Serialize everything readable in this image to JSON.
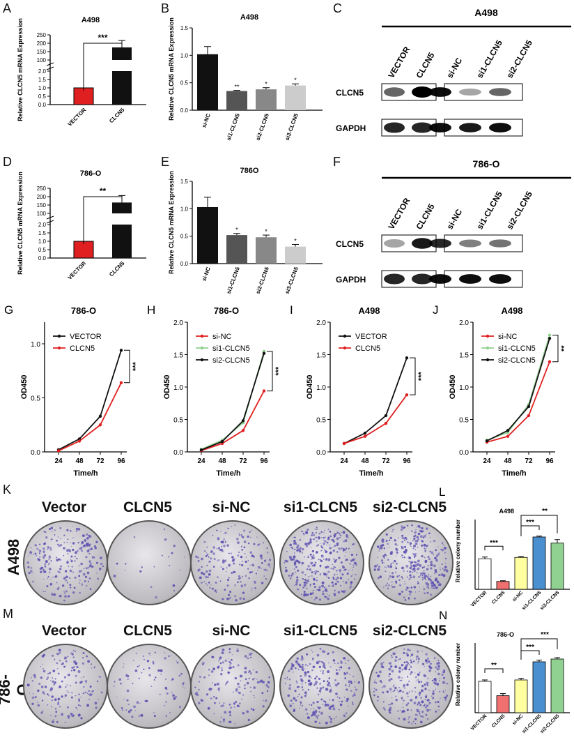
{
  "panels": {
    "A": {
      "letter": "A",
      "title": "A498",
      "ylabel": "Relative CLCN5 mRNA Expression",
      "categories": [
        "VECTOR",
        "CLCN5"
      ],
      "values": [
        1.0,
        175
      ],
      "colors": [
        "#e02020",
        "#111111"
      ],
      "sig": "***",
      "yticks_low": [
        "0.0",
        "0.5",
        "1.0",
        "1.5",
        "2.0"
      ],
      "yticks_high": [
        "100",
        "150",
        "200",
        "250"
      ]
    },
    "B": {
      "letter": "B",
      "title": "A498",
      "ylabel": "Relative CLCN5 mRNA Expression",
      "categories": [
        "si-NC",
        "si1-CLCN5",
        "si2-CLCN5",
        "si3-CLCN5"
      ],
      "values": [
        1.02,
        0.35,
        0.38,
        0.45
      ],
      "errors": [
        0.14,
        0.01,
        0.03,
        0.03
      ],
      "sig": [
        "",
        "**",
        "*",
        "*"
      ],
      "colors": [
        "#111111",
        "#555555",
        "#888888",
        "#cccccc"
      ],
      "yticks": [
        "0.0",
        "0.5",
        "1.0",
        "1.5"
      ]
    },
    "C": {
      "letter": "C",
      "cell": "A498",
      "lanes_left": [
        "VECTOR",
        "CLCN5"
      ],
      "lanes_right": [
        "si-NC",
        "si1-CLCN5",
        "si2-CLCN5"
      ],
      "rows": [
        "CLCN5",
        "GAPDH"
      ]
    },
    "D": {
      "letter": "D",
      "title": "786-O",
      "ylabel": "Relative CLCN5 mRNA Expression",
      "categories": [
        "VECTOR",
        "CLCN5"
      ],
      "values": [
        1.0,
        165
      ],
      "colors": [
        "#e02020",
        "#111111"
      ],
      "sig": "**",
      "yticks_low": [
        "0.0",
        "0.5",
        "1.0",
        "1.5",
        "2.0"
      ],
      "yticks_high": [
        "100",
        "150",
        "200",
        "250"
      ]
    },
    "E": {
      "letter": "E",
      "title": "786O",
      "ylabel": "Relative CLCN5 mRNA Expression",
      "categories": [
        "si-NC",
        "si1-CLCN5",
        "si2-CLCN5",
        "si3-CLCN5"
      ],
      "values": [
        1.03,
        0.52,
        0.48,
        0.31
      ],
      "errors": [
        0.18,
        0.03,
        0.04,
        0.04
      ],
      "sig": [
        "",
        "*",
        "*",
        "*"
      ],
      "colors": [
        "#111111",
        "#555555",
        "#888888",
        "#cccccc"
      ],
      "yticks": [
        "0.0",
        "0.5",
        "1.0",
        "1.5"
      ]
    },
    "F": {
      "letter": "F",
      "cell": "786-O",
      "lanes_left": [
        "VECTOR",
        "CLCN5"
      ],
      "lanes_right": [
        "si-NC",
        "si1-CLCN5",
        "si2-CLCN5"
      ],
      "rows": [
        "CLCN5",
        "GAPDH"
      ]
    },
    "K": {
      "letter": "K",
      "row_label": "A498",
      "dishes": [
        "Vector",
        "CLCN5",
        "si-NC",
        "si1-CLCN5",
        "si2-CLCN5"
      ],
      "density": [
        0.55,
        0.05,
        0.45,
        0.85,
        0.8
      ]
    },
    "M": {
      "letter": "M",
      "row_label": "786-O",
      "dishes": [
        "Vector",
        "CLCN5",
        "si-NC",
        "si1-CLCN5",
        "si2-CLCN5"
      ],
      "density": [
        0.4,
        0.2,
        0.35,
        0.6,
        0.65
      ]
    }
  },
  "chart_data": [
    {
      "type": "line",
      "panel": "G",
      "title": "786-O",
      "xlabel": "Time/h",
      "ylabel": "OD450",
      "x": [
        24,
        48,
        72,
        96
      ],
      "ylim": [
        0,
        1.2
      ],
      "yticks": [
        "0.0",
        "0.5",
        "1.0"
      ],
      "series": [
        {
          "name": "VECTOR",
          "color": "#111111",
          "values": [
            0.02,
            0.12,
            0.33,
            0.94
          ]
        },
        {
          "name": "CLCN5",
          "color": "#e02020",
          "values": [
            0.01,
            0.1,
            0.25,
            0.64
          ]
        }
      ],
      "sig": "***"
    },
    {
      "type": "line",
      "panel": "H",
      "title": "786-O",
      "xlabel": "Time/h",
      "ylabel": "OD450",
      "x": [
        24,
        48,
        72,
        96
      ],
      "ylim": [
        0,
        2.0
      ],
      "yticks": [
        "0.0",
        "0.5",
        "1.0",
        "1.5",
        "2.0"
      ],
      "series": [
        {
          "name": "si-NC",
          "color": "#e02020",
          "values": [
            0.02,
            0.13,
            0.33,
            0.94
          ]
        },
        {
          "name": "si1-CLCN5",
          "color": "#90d090",
          "values": [
            0.04,
            0.18,
            0.45,
            1.55
          ]
        },
        {
          "name": "si2-CLCN5",
          "color": "#111111",
          "values": [
            0.03,
            0.16,
            0.48,
            1.52
          ]
        }
      ],
      "sig": "***"
    },
    {
      "type": "line",
      "panel": "I",
      "title": "A498",
      "xlabel": "Time/h",
      "ylabel": "OD450",
      "x": [
        24,
        48,
        72,
        96
      ],
      "ylim": [
        0,
        2.0
      ],
      "yticks": [
        "0.0",
        "0.5",
        "1.0",
        "1.5",
        "2.0"
      ],
      "series": [
        {
          "name": "VECTOR",
          "color": "#111111",
          "values": [
            0.13,
            0.29,
            0.56,
            1.45
          ]
        },
        {
          "name": "CLCN5",
          "color": "#e02020",
          "values": [
            0.13,
            0.24,
            0.44,
            0.88
          ]
        }
      ],
      "sig": "***"
    },
    {
      "type": "line",
      "panel": "J",
      "title": "A498",
      "xlabel": "Time/h",
      "ylabel": "OD450",
      "x": [
        24,
        48,
        72,
        96
      ],
      "ylim": [
        0,
        2.0
      ],
      "yticks": [
        "0.0",
        "0.5",
        "1.0",
        "1.5",
        "2.0"
      ],
      "series": [
        {
          "name": "si-NC",
          "color": "#e02020",
          "values": [
            0.15,
            0.24,
            0.56,
            1.39
          ]
        },
        {
          "name": "si1-CLCN5",
          "color": "#90d090",
          "values": [
            0.18,
            0.3,
            0.73,
            1.8
          ]
        },
        {
          "name": "si2-CLCN5",
          "color": "#111111",
          "values": [
            0.17,
            0.33,
            0.7,
            1.75
          ]
        }
      ],
      "sig": "**"
    },
    {
      "type": "bar",
      "panel": "L",
      "title": "A498",
      "ylabel": "Relative colony number",
      "categories": [
        "VECTOR",
        "CLCN5",
        "si-NC",
        "si1-CLCN5",
        "si2-CLCN5"
      ],
      "values": [
        175,
        45,
        183,
        300,
        265
      ],
      "errors": [
        10,
        4,
        5,
        5,
        20
      ],
      "colors": [
        "#ffffff",
        "#f07070",
        "#ffffa0",
        "#4a90d0",
        "#90d090"
      ],
      "ylim": [
        0,
        400
      ],
      "sig": [
        "***",
        "***",
        "**"
      ]
    },
    {
      "type": "bar",
      "panel": "N",
      "title": "786-O",
      "ylabel": "Relative colony number",
      "categories": [
        "VECTOR",
        "CLCN5",
        "si-NC",
        "si1-CLCN5",
        "si2-CLCN5"
      ],
      "values": [
        225,
        122,
        235,
        365,
        385
      ],
      "errors": [
        10,
        15,
        12,
        12,
        10
      ],
      "colors": [
        "#ffffff",
        "#f07070",
        "#ffffa0",
        "#4a90d0",
        "#90d090"
      ],
      "ylim": [
        0,
        500
      ],
      "sig": [
        "**",
        "***",
        "***"
      ]
    }
  ]
}
